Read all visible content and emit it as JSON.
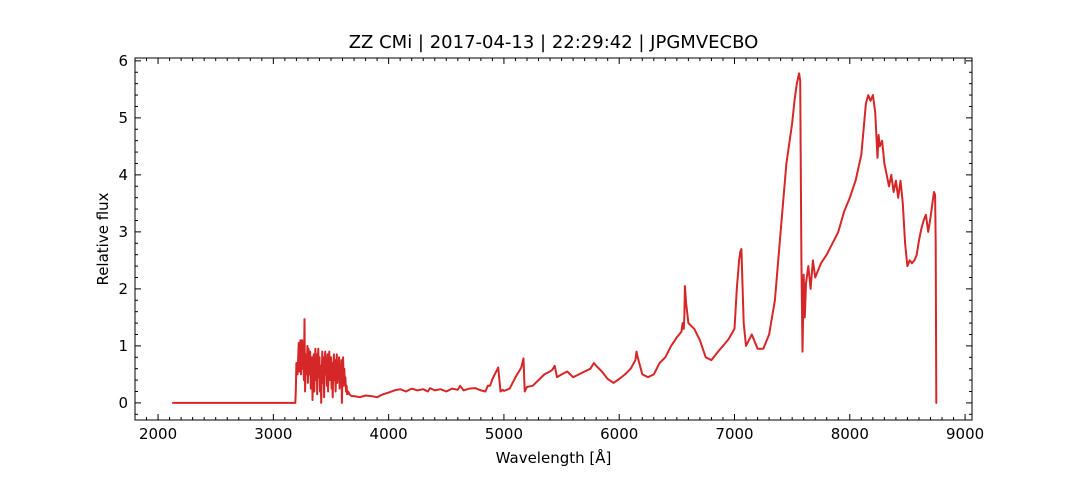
{
  "chart_data": {
    "type": "line",
    "title": "ZZ CMi | 2017-04-13 | 22:29:42 | JPGMVECBO",
    "xlabel": "Wavelength [Å]",
    "ylabel": "Relative flux",
    "xlim": [
      1800,
      9060
    ],
    "ylim": [
      -0.3,
      6.05
    ],
    "xticks": [
      2000,
      3000,
      4000,
      5000,
      6000,
      7000,
      8000,
      9000
    ],
    "yticks": [
      0,
      1,
      2,
      3,
      4,
      5,
      6
    ],
    "grid": false,
    "series": [
      {
        "color": "#d62728",
        "x": [
          2130,
          3190,
          3195,
          3200,
          3210,
          3220,
          3225,
          3230,
          3235,
          3240,
          3245,
          3250,
          3255,
          3260,
          3265,
          3270,
          3275,
          3280,
          3285,
          3290,
          3295,
          3300,
          3305,
          3310,
          3315,
          3320,
          3325,
          3330,
          3335,
          3340,
          3345,
          3350,
          3355,
          3360,
          3365,
          3370,
          3375,
          3380,
          3385,
          3390,
          3395,
          3400,
          3405,
          3410,
          3415,
          3420,
          3425,
          3430,
          3435,
          3440,
          3445,
          3450,
          3455,
          3460,
          3465,
          3470,
          3475,
          3480,
          3485,
          3490,
          3495,
          3500,
          3505,
          3510,
          3515,
          3520,
          3525,
          3530,
          3535,
          3540,
          3545,
          3550,
          3555,
          3560,
          3565,
          3570,
          3575,
          3580,
          3585,
          3590,
          3595,
          3600,
          3605,
          3610,
          3615,
          3620,
          3625,
          3630,
          3635,
          3640,
          3650,
          3660,
          3680,
          3700,
          3750,
          3800,
          3850,
          3900,
          3950,
          4000,
          4050,
          4100,
          4150,
          4200,
          4250,
          4300,
          4340,
          4360,
          4400,
          4450,
          4500,
          4550,
          4600,
          4620,
          4650,
          4700,
          4750,
          4800,
          4840,
          4860,
          4880,
          4900,
          4950,
          4970,
          4990,
          5000,
          5050,
          5100,
          5150,
          5170,
          5180,
          5200,
          5250,
          5300,
          5350,
          5400,
          5420,
          5440,
          5460,
          5500,
          5550,
          5600,
          5650,
          5700,
          5750,
          5780,
          5800,
          5850,
          5900,
          5950,
          6000,
          6050,
          6100,
          6140,
          6150,
          6160,
          6200,
          6250,
          6300,
          6350,
          6400,
          6450,
          6500,
          6540,
          6550,
          6560,
          6565,
          6570,
          6580,
          6600,
          6650,
          6700,
          6750,
          6800,
          6850,
          6900,
          6950,
          7000,
          7020,
          7040,
          7050,
          7060,
          7080,
          7100,
          7150,
          7200,
          7250,
          7300,
          7350,
          7400,
          7450,
          7500,
          7520,
          7540,
          7560,
          7570,
          7580,
          7590,
          7595,
          7600,
          7610,
          7620,
          7640,
          7660,
          7680,
          7700,
          7720,
          7750,
          7800,
          7850,
          7900,
          7950,
          8000,
          8050,
          8100,
          8120,
          8140,
          8160,
          8180,
          8200,
          8220,
          8240,
          8250,
          8260,
          8280,
          8300,
          8320,
          8340,
          8360,
          8380,
          8400,
          8420,
          8440,
          8460,
          8480,
          8500,
          8520,
          8540,
          8560,
          8580,
          8600,
          8620,
          8640,
          8660,
          8680,
          8700,
          8720,
          8730,
          8740,
          8745,
          8750
        ],
        "y": [
          0.0,
          0.0,
          0.2,
          0.7,
          0.5,
          1.05,
          0.55,
          0.9,
          1.1,
          0.5,
          0.85,
          1.1,
          0.6,
          0.9,
          0.4,
          1.47,
          0.2,
          0.7,
          0.85,
          0.5,
          1.0,
          0.35,
          0.95,
          0.7,
          0.5,
          0.9,
          0.25,
          0.6,
          0.8,
          0.05,
          0.65,
          0.85,
          0.2,
          0.75,
          0.95,
          0.4,
          0.85,
          0.15,
          0.6,
          0.95,
          0.45,
          0.8,
          0.2,
          0.65,
          0.0,
          0.55,
          0.9,
          0.35,
          0.8,
          0.1,
          0.6,
          0.9,
          0.5,
          0.75,
          0.3,
          0.85,
          0.2,
          0.7,
          0.9,
          0.4,
          0.65,
          0.8,
          0.25,
          0.7,
          0.1,
          0.6,
          0.85,
          0.4,
          0.75,
          0.2,
          0.6,
          0.85,
          0.35,
          0.7,
          0.5,
          0.8,
          0.25,
          0.65,
          0.4,
          0.75,
          0.0,
          0.55,
          0.8,
          0.3,
          0.6,
          0.4,
          0.45,
          0.2,
          0.3,
          0.15,
          0.2,
          0.15,
          0.12,
          0.12,
          0.1,
          0.13,
          0.12,
          0.1,
          0.15,
          0.18,
          0.22,
          0.24,
          0.2,
          0.25,
          0.22,
          0.24,
          0.2,
          0.26,
          0.22,
          0.24,
          0.2,
          0.25,
          0.23,
          0.3,
          0.22,
          0.25,
          0.26,
          0.22,
          0.2,
          0.3,
          0.3,
          0.42,
          0.62,
          0.2,
          0.23,
          0.21,
          0.25,
          0.45,
          0.62,
          0.78,
          0.2,
          0.28,
          0.3,
          0.4,
          0.5,
          0.55,
          0.58,
          0.65,
          0.45,
          0.5,
          0.55,
          0.45,
          0.5,
          0.55,
          0.6,
          0.7,
          0.65,
          0.55,
          0.42,
          0.35,
          0.42,
          0.5,
          0.6,
          0.75,
          0.9,
          0.8,
          0.5,
          0.45,
          0.5,
          0.7,
          0.8,
          1.0,
          1.15,
          1.25,
          1.4,
          1.3,
          1.55,
          2.05,
          1.75,
          1.4,
          1.3,
          1.1,
          0.8,
          0.75,
          0.88,
          1.0,
          1.12,
          1.3,
          2.0,
          2.5,
          2.65,
          2.7,
          1.4,
          1.0,
          1.2,
          0.95,
          0.95,
          1.2,
          1.8,
          3.0,
          4.2,
          4.9,
          5.3,
          5.6,
          5.78,
          5.65,
          2.5,
          0.9,
          1.5,
          2.25,
          1.5,
          2.1,
          2.4,
          2.0,
          2.5,
          2.2,
          2.3,
          2.45,
          2.6,
          2.8,
          3.0,
          3.35,
          3.6,
          3.9,
          4.35,
          4.8,
          5.25,
          5.4,
          5.3,
          5.4,
          5.1,
          4.3,
          4.7,
          4.5,
          4.6,
          4.2,
          4.0,
          3.8,
          4.0,
          3.7,
          3.9,
          3.6,
          3.9,
          3.5,
          2.8,
          2.4,
          2.5,
          2.45,
          2.5,
          2.6,
          2.85,
          3.05,
          3.2,
          3.3,
          3.0,
          3.25,
          3.55,
          3.7,
          3.65,
          2.8,
          0.0
        ]
      }
    ]
  }
}
